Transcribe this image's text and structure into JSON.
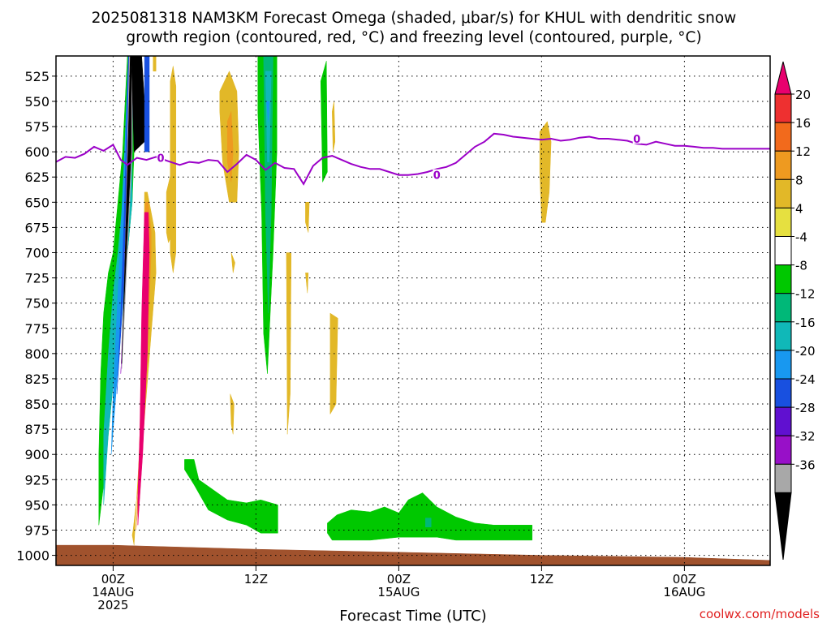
{
  "title_line1": "2025081318 NAM3KM Forecast Omega (shaded, μbar/s) for KHUL with dendritic snow",
  "title_line2": "growth region (contoured, red, °C) and freezing level (contoured, purple, °C)",
  "credit": "coolwx.com/models",
  "chart_data": {
    "type": "heatmap",
    "xlabel": "Forecast Time (UTC)",
    "ylabel": "",
    "y_reversed": true,
    "ylim": [
      1010,
      505
    ],
    "xlim": [
      -6,
      69
    ],
    "y_ticks": [
      525,
      550,
      575,
      600,
      625,
      650,
      675,
      700,
      725,
      750,
      775,
      800,
      825,
      850,
      875,
      900,
      925,
      950,
      975,
      1000
    ],
    "x_ticks": [
      {
        "value": 0,
        "line1": "00Z",
        "line2": "14AUG",
        "line3": "2025"
      },
      {
        "value": 15,
        "line1": "12Z",
        "line2": "",
        "line3": ""
      },
      {
        "value": 30,
        "line1": "00Z",
        "line2": "15AUG",
        "line3": ""
      },
      {
        "value": 45,
        "line1": "12Z",
        "line2": "",
        "line3": ""
      },
      {
        "value": 60,
        "line1": "00Z",
        "line2": "16AUG",
        "line3": ""
      }
    ],
    "colorbar": {
      "levels": [
        "20",
        "16",
        "12",
        "8",
        "4",
        "-4",
        "-8",
        "-12",
        "-16",
        "-20",
        "-24",
        "-28",
        "-32",
        "-36"
      ],
      "colors": [
        "#e8006e",
        "#ee3030",
        "#f26a1c",
        "#ee9a20",
        "#e2b828",
        "#e6e040",
        "#ffffff",
        "#00c800",
        "#00b878",
        "#10b8b8",
        "#1898f0",
        "#1850e0",
        "#6010d0",
        "#9810c8",
        "#a8a8a8",
        "#000000"
      ]
    },
    "freezing_level": {
      "name": "0",
      "color": "#9b00c8",
      "x": [
        -6,
        -5,
        -4,
        -3,
        -2,
        -1,
        0,
        0.8,
        1.5,
        2.5,
        3.5,
        4.5,
        6,
        7,
        8,
        9,
        10,
        11,
        12,
        13,
        14,
        15,
        16,
        17,
        18,
        19,
        20,
        21,
        22,
        23,
        24,
        25,
        26,
        27,
        28,
        29,
        30,
        31,
        32,
        33,
        34,
        35,
        36,
        37,
        38,
        39,
        40,
        41,
        42,
        43,
        44,
        45,
        46,
        47,
        48,
        49,
        50,
        51,
        52,
        53,
        54,
        55,
        56,
        57,
        58,
        59,
        60,
        61,
        62,
        63,
        64,
        65,
        66,
        67,
        68,
        69
      ],
      "y": [
        610,
        605,
        606,
        602,
        595,
        599,
        593,
        608,
        613,
        606,
        608,
        605,
        610,
        613,
        610,
        611,
        608,
        609,
        620,
        612,
        603,
        608,
        618,
        611,
        616,
        617,
        632,
        614,
        606,
        604,
        608,
        612,
        615,
        617,
        617,
        620,
        623,
        623,
        622,
        620,
        617,
        615,
        611,
        603,
        595,
        590,
        582,
        583,
        585,
        586,
        587,
        588,
        587,
        589,
        588,
        586,
        585,
        587,
        587,
        588,
        589,
        592,
        593,
        590,
        592,
        594,
        594,
        595,
        596,
        596,
        597,
        597,
        597,
        597,
        597,
        597
      ],
      "labels_at": [
        [
          5,
          606
        ],
        [
          34,
          623
        ],
        [
          55,
          587
        ]
      ]
    },
    "regions": [
      {
        "color": "#00c800",
        "x": [
          -1.5,
          -1,
          -0.5,
          0,
          0.5,
          1,
          1.5,
          2,
          2.2,
          2.2,
          1.5,
          1,
          0.5,
          0,
          -0.5,
          -1,
          -1.3,
          -1.5
        ],
        "y": [
          970,
          930,
          880,
          830,
          780,
          740,
          700,
          650,
          600,
          505,
          505,
          600,
          650,
          700,
          720,
          760,
          820,
          900
        ]
      },
      {
        "color": "#10b8b8",
        "x": [
          -1,
          -0.5,
          0,
          0.5,
          1,
          1.5,
          2,
          2,
          1.5,
          1,
          0.5,
          0,
          -0.5,
          -1
        ],
        "y": [
          950,
          880,
          830,
          780,
          740,
          700,
          650,
          600,
          600,
          650,
          700,
          740,
          800,
          880
        ]
      },
      {
        "color": "#1898f0",
        "x": [
          -0.2,
          0.3,
          0.8,
          1.2,
          1.5,
          1.8,
          2,
          2,
          1.6,
          1.2,
          0.8,
          0.4,
          0
        ],
        "y": [
          900,
          840,
          780,
          730,
          680,
          630,
          600,
          505,
          505,
          600,
          680,
          760,
          840
        ]
      },
      {
        "color": "#1850e0",
        "x": [
          0.4,
          0.8,
          1.1,
          1.4,
          1.7,
          2,
          2,
          1.6,
          1.2,
          0.8
        ],
        "y": [
          840,
          780,
          730,
          680,
          630,
          600,
          505,
          505,
          650,
          760
        ]
      },
      {
        "color": "#9810c8",
        "x": [
          0.8,
          1.1,
          1.4,
          1.7,
          2,
          2,
          1.7,
          1.4,
          1.1
        ],
        "y": [
          820,
          760,
          700,
          640,
          600,
          505,
          505,
          640,
          760
        ]
      },
      {
        "color": "#a8a8a8",
        "x": [
          0.9,
          1.2,
          1.5,
          1.8,
          2,
          2,
          1.7,
          1.4,
          1.1
        ],
        "y": [
          815,
          760,
          700,
          640,
          600,
          505,
          505,
          640,
          760
        ]
      },
      {
        "color": "#000000",
        "x": [
          0.9,
          1.1,
          1.4,
          1.7,
          1.9,
          1.9,
          1.8,
          1.5,
          1.2,
          1.0
        ],
        "y": [
          810,
          760,
          700,
          640,
          600,
          505,
          505,
          620,
          720,
          780
        ]
      },
      {
        "color": "#000000",
        "x": [
          1.9,
          2.3,
          3,
          3.3,
          3.3,
          2.2
        ],
        "y": [
          505,
          505,
          505,
          550,
          590,
          600
        ]
      },
      {
        "color": "#1850e0",
        "x": [
          3.3,
          3.8,
          3.8,
          3.3
        ],
        "y": [
          505,
          505,
          600,
          600
        ]
      },
      {
        "color": "#e2b828",
        "x": [
          4.2,
          4.5,
          4.5,
          4.2
        ],
        "y": [
          505,
          505,
          520,
          520
        ]
      },
      {
        "color": "#e2b828",
        "x": [
          2.1,
          3,
          4,
          4.5,
          4.4,
          4,
          3.6,
          3.3,
          3.2,
          3,
          2.5,
          2.2,
          2.0
        ],
        "y": [
          975,
          900,
          780,
          720,
          680,
          660,
          640,
          640,
          740,
          860,
          940,
          990,
          980
        ]
      },
      {
        "color": "#ee9a20",
        "x": [
          2.4,
          3,
          3.6,
          4,
          4,
          3.7,
          3.4,
          3.1,
          2.8,
          2.5
        ],
        "y": [
          975,
          900,
          800,
          700,
          680,
          650,
          650,
          760,
          880,
          960
        ]
      },
      {
        "color": "#e8006e",
        "x": [
          2.6,
          3.1,
          3.6,
          3.8,
          3.7,
          3.3,
          3,
          2.8,
          2.6
        ],
        "y": [
          970,
          900,
          800,
          700,
          660,
          660,
          760,
          880,
          940
        ]
      },
      {
        "color": "#e2b828",
        "x": [
          6,
          6.3,
          6.6,
          6.6,
          6.3,
          6
        ],
        "y": [
          530,
          515,
          535,
          700,
          720,
          700
        ]
      },
      {
        "color": "#e2b828",
        "x": [
          5.6,
          6.1,
          6.3,
          6.3,
          5.8,
          5.6
        ],
        "y": [
          640,
          620,
          650,
          680,
          690,
          680
        ]
      },
      {
        "color": "#e2b828",
        "x": [
          11.2,
          12.2,
          13,
          13.2,
          13,
          12.2,
          11.5,
          11.2
        ],
        "y": [
          540,
          520,
          540,
          600,
          650,
          650,
          610,
          560
        ]
      },
      {
        "color": "#ee9a20",
        "x": [
          12,
          12.4,
          12.6,
          12.4,
          12.0
        ],
        "y": [
          570,
          560,
          600,
          630,
          610
        ]
      },
      {
        "color": "#e2b828",
        "x": [
          12.4,
          12.8,
          12.6
        ],
        "y": [
          700,
          710,
          720
        ]
      },
      {
        "color": "#e2b828",
        "x": [
          12.3,
          12.7,
          12.6,
          12.4
        ],
        "y": [
          840,
          850,
          880,
          870
        ]
      },
      {
        "color": "#00c800",
        "x": [
          15.2,
          17.2,
          17.2,
          16.8,
          16.5,
          16.2,
          15.8,
          15.6,
          15.2
        ],
        "y": [
          505,
          505,
          600,
          700,
          760,
          820,
          780,
          660,
          560
        ]
      },
      {
        "color": "#00b878",
        "x": [
          15.8,
          16.8,
          16.6,
          16.3,
          16.0
        ],
        "y": [
          505,
          505,
          660,
          760,
          660
        ]
      },
      {
        "color": "#10b8b8",
        "x": [
          16.0,
          16.6,
          16.4,
          16.2
        ],
        "y": [
          520,
          520,
          610,
          610
        ]
      },
      {
        "color": "#1898f0",
        "x": [
          16.1,
          16.4,
          16.3
        ],
        "y": [
          550,
          550,
          570
        ]
      },
      {
        "color": "#e2b828",
        "x": [
          18.2,
          18.7,
          18.6,
          18.3
        ],
        "y": [
          700,
          700,
          840,
          880
        ]
      },
      {
        "color": "#00c800",
        "x": [
          21.8,
          22.4,
          22.5,
          22.0
        ],
        "y": [
          530,
          510,
          620,
          630
        ]
      },
      {
        "color": "#e2b828",
        "x": [
          23,
          23.2,
          23.3,
          23.1
        ],
        "y": [
          560,
          550,
          590,
          600
        ]
      },
      {
        "color": "#e2b828",
        "x": [
          20.2,
          20.6,
          20.5,
          20.2
        ],
        "y": [
          650,
          650,
          680,
          670
        ]
      },
      {
        "color": "#e2b828",
        "x": [
          20.2,
          20.5,
          20.4
        ],
        "y": [
          720,
          720,
          740
        ]
      },
      {
        "color": "#e2b828",
        "x": [
          22.8,
          23.6,
          23.4,
          22.8
        ],
        "y": [
          760,
          765,
          850,
          860
        ]
      },
      {
        "color": "#00c800",
        "x": [
          7.5,
          8.5,
          9,
          10.5,
          12,
          14,
          15.5,
          17.3,
          17.3,
          15.5,
          14,
          12,
          10,
          8.5,
          7.5
        ],
        "y": [
          905,
          905,
          925,
          935,
          945,
          948,
          945,
          950,
          978,
          978,
          970,
          965,
          955,
          930,
          915
        ]
      },
      {
        "color": "#00c800",
        "x": [
          22.5,
          23.5,
          25,
          27,
          28.5,
          30,
          31,
          32.5,
          34,
          36,
          38,
          40,
          42,
          44,
          44,
          40,
          36,
          34,
          30,
          27,
          25,
          23,
          22.5
        ],
        "y": [
          968,
          960,
          955,
          957,
          952,
          958,
          945,
          938,
          952,
          962,
          968,
          970,
          970,
          970,
          985,
          985,
          985,
          982,
          982,
          985,
          985,
          985,
          978
        ]
      },
      {
        "color": "#00b878",
        "x": [
          32.8,
          33.4,
          33.4,
          32.8
        ],
        "y": [
          963,
          963,
          972,
          972
        ]
      },
      {
        "color": "#e2b828",
        "x": [
          44.8,
          45.6,
          46.0,
          45.8,
          45.4,
          45.0,
          44.8
        ],
        "y": [
          580,
          570,
          590,
          640,
          670,
          670,
          620
        ]
      },
      {
        "color": "#a0522d",
        "x": [
          -6,
          69,
          69,
          60,
          45,
          30,
          15,
          0,
          -6
        ],
        "y": [
          1010,
          1010,
          1005,
          1002,
          1000,
          997,
          994,
          990,
          990
        ]
      }
    ]
  }
}
